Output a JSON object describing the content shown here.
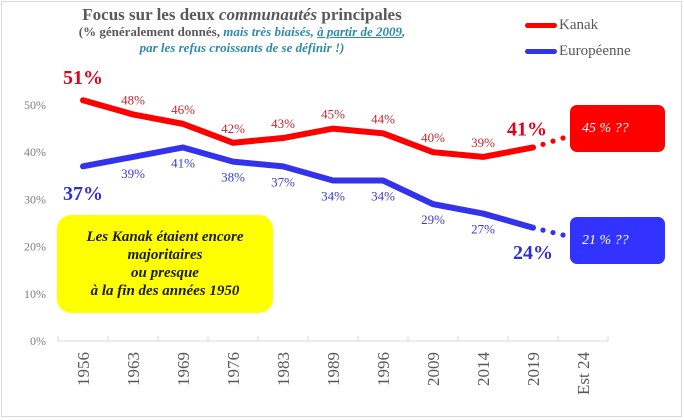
{
  "chart_data": {
    "type": "line",
    "title": "Focus sur les deux communautés principales",
    "title_parts": {
      "pre": "Focus sur les deux ",
      "italic": "communautés",
      "post": " principales"
    },
    "subtitle": {
      "line1_a": "(% généralement donnés, ",
      "line1_b": "mais très biaisés, ",
      "line1_c": "à partir de 2009",
      "line1_d": ",",
      "line2": "par les refus croissants de se définir !)"
    },
    "categories": [
      "1956",
      "1963",
      "1969",
      "1976",
      "1983",
      "1989",
      "1996",
      "2009",
      "2014",
      "2019",
      "Est 24"
    ],
    "series": [
      {
        "name": "Kanak",
        "color": "#ff0000",
        "values": [
          51,
          48,
          46,
          42,
          43,
          45,
          44,
          40,
          39,
          41
        ],
        "estimate": 45,
        "estimate_label": "45 % ??"
      },
      {
        "name": "Européenne",
        "color": "#3333ee",
        "values": [
          37,
          39,
          41,
          38,
          37,
          34,
          34,
          29,
          27,
          24
        ],
        "estimate": 21,
        "estimate_label": "21 % ??"
      }
    ],
    "ylim": [
      0,
      55
    ],
    "yticks": [
      "0%",
      "10%",
      "20%",
      "30%",
      "40%",
      "50%"
    ],
    "ytick_values": [
      0,
      10,
      20,
      30,
      40,
      50
    ],
    "xlabel": "",
    "ylabel": "",
    "grid": false,
    "legend_position": "top-right",
    "annotation": {
      "lines": [
        "Les Kanak étaient encore",
        "majoritaires",
        "ou presque",
        "à la fin des années 1950"
      ],
      "color": "#ffff00"
    }
  }
}
